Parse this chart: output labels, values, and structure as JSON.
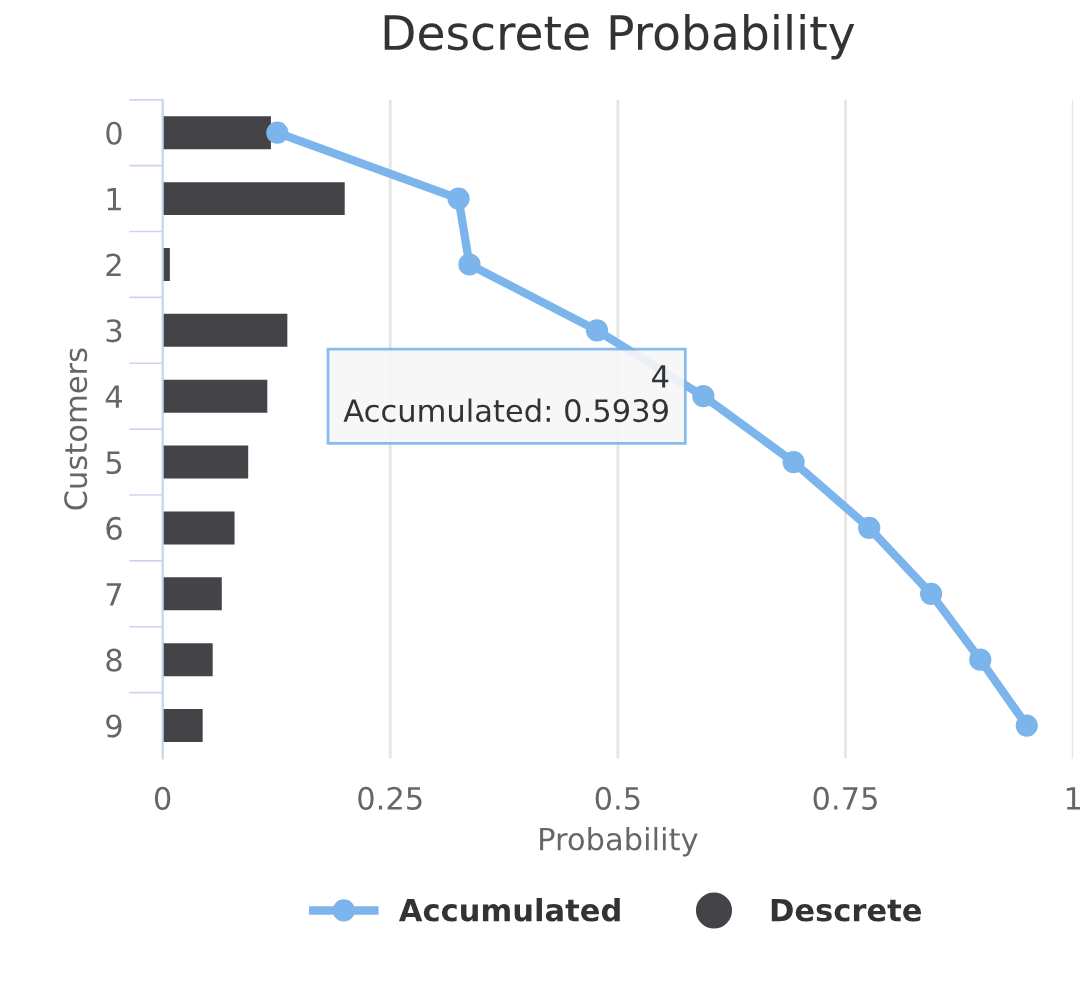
{
  "chart_data": {
    "type": "bar",
    "orientation": "horizontal",
    "title": "Descrete Probability",
    "xlabel": "Probability",
    "ylabel": "Customers",
    "categories": [
      "0",
      "1",
      "2",
      "3",
      "4",
      "5",
      "6",
      "7",
      "8",
      "9"
    ],
    "series": [
      {
        "name": "Accumulated",
        "type": "line",
        "color": "#7cb5ec",
        "values": [
          0.126,
          0.325,
          0.337,
          0.477,
          0.5939,
          0.693,
          0.776,
          0.844,
          0.898,
          0.949
        ]
      },
      {
        "name": "Descrete",
        "color": "#434348",
        "values": [
          0.119,
          0.2,
          0.008,
          0.137,
          0.115,
          0.094,
          0.079,
          0.065,
          0.055,
          0.044
        ]
      }
    ],
    "xlim": [
      0,
      1
    ],
    "xticks": [
      0,
      0.25,
      0.5,
      0.75,
      1
    ],
    "grid": "x",
    "legend": "bottom",
    "marker": "circle",
    "annotations": [
      {
        "text": "4\nAccumulated: 0.5939",
        "x": 0.5939,
        "y": "4"
      }
    ]
  }
}
